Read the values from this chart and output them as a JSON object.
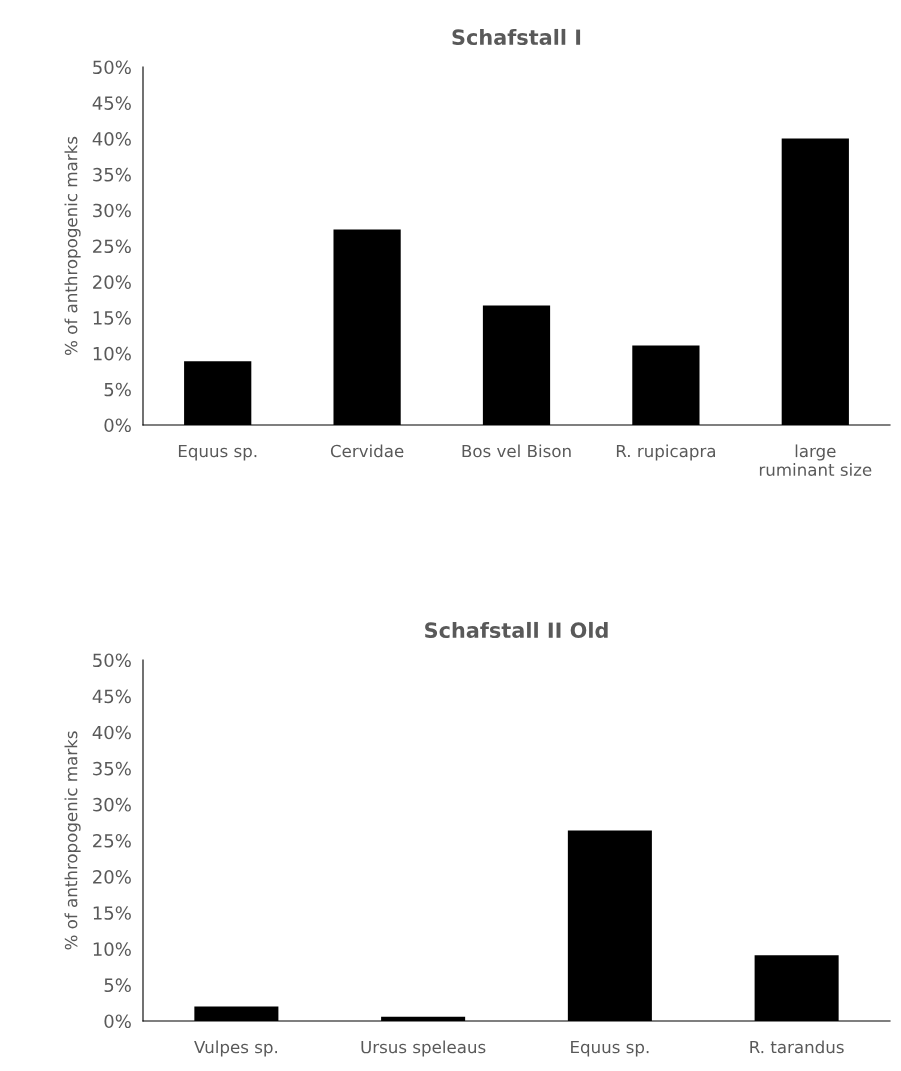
{
  "chart_data": [
    {
      "type": "bar",
      "title": "Schafstall I",
      "ylabel": "% of anthropogenic marks",
      "categories": [
        "Equus sp.",
        "Cervidae",
        "Bos vel Bison",
        "R. rupicapra",
        "large\nruminant size"
      ],
      "values": [
        8.9,
        27.3,
        16.7,
        11.1,
        40.0
      ],
      "color": "#000000",
      "ylim": [
        0,
        50
      ],
      "yticks": [
        {
          "value": 0,
          "label": "0%"
        },
        {
          "value": 5,
          "label": "5%"
        },
        {
          "value": 10,
          "label": "10%"
        },
        {
          "value": 15,
          "label": "15%"
        },
        {
          "value": 20,
          "label": "20%"
        },
        {
          "value": 25,
          "label": "25%"
        },
        {
          "value": 30,
          "label": "30%"
        },
        {
          "value": 35,
          "label": "35%"
        },
        {
          "value": 40,
          "label": "40%"
        },
        {
          "value": 45,
          "label": "45%"
        },
        {
          "value": 50,
          "label": "50%"
        }
      ],
      "grid": false,
      "legend": false
    },
    {
      "type": "bar",
      "title": "Schafstall II Old",
      "ylabel": "% of anthropogenic marks",
      "categories": [
        "Vulpes sp.",
        "Ursus speleaus",
        "Equus sp.",
        "R. tarandus"
      ],
      "values": [
        2.0,
        0.6,
        26.4,
        9.1
      ],
      "color": "#000000",
      "ylim": [
        0,
        50
      ],
      "yticks": [
        {
          "value": 0,
          "label": "0%"
        },
        {
          "value": 5,
          "label": "5%"
        },
        {
          "value": 10,
          "label": "10%"
        },
        {
          "value": 15,
          "label": "15%"
        },
        {
          "value": 20,
          "label": "20%"
        },
        {
          "value": 25,
          "label": "25%"
        },
        {
          "value": 30,
          "label": "30%"
        },
        {
          "value": 35,
          "label": "35%"
        },
        {
          "value": 40,
          "label": "40%"
        },
        {
          "value": 45,
          "label": "45%"
        },
        {
          "value": 50,
          "label": "50%"
        }
      ],
      "grid": false,
      "legend": false
    }
  ]
}
